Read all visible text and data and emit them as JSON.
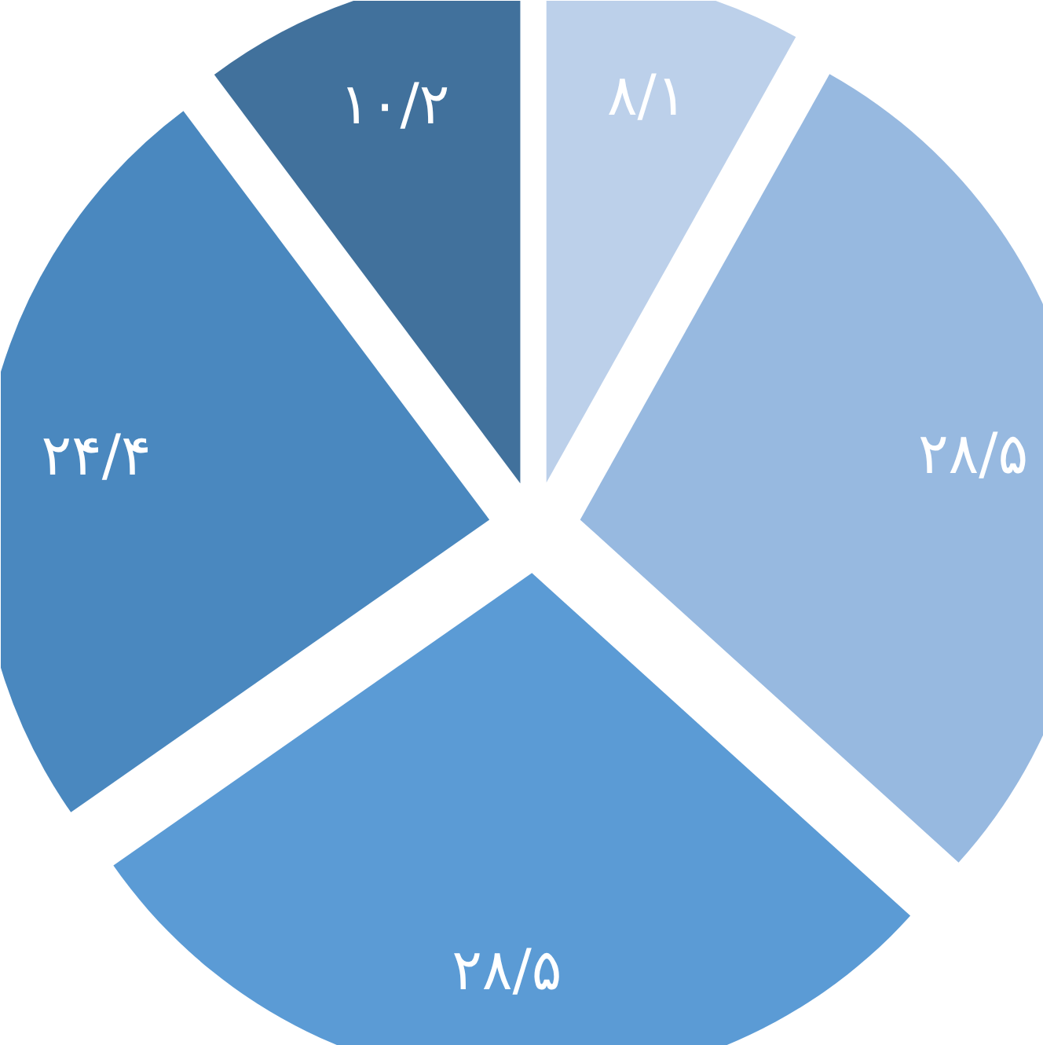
{
  "chart_data": {
    "type": "pie",
    "categories": [
      null,
      null,
      null,
      null,
      null
    ],
    "values": [
      8.1,
      28.5,
      28.5,
      24.4,
      10.2
    ],
    "value_labels": [
      "۸/۱",
      "۲۸/۵",
      "۲۸/۵",
      "۲۴/۴",
      "۱۰/۲"
    ],
    "colors": [
      "#bcd0ea",
      "#97b9e0",
      "#5b9bd5",
      "#4a88bf",
      "#41719c"
    ]
  }
}
